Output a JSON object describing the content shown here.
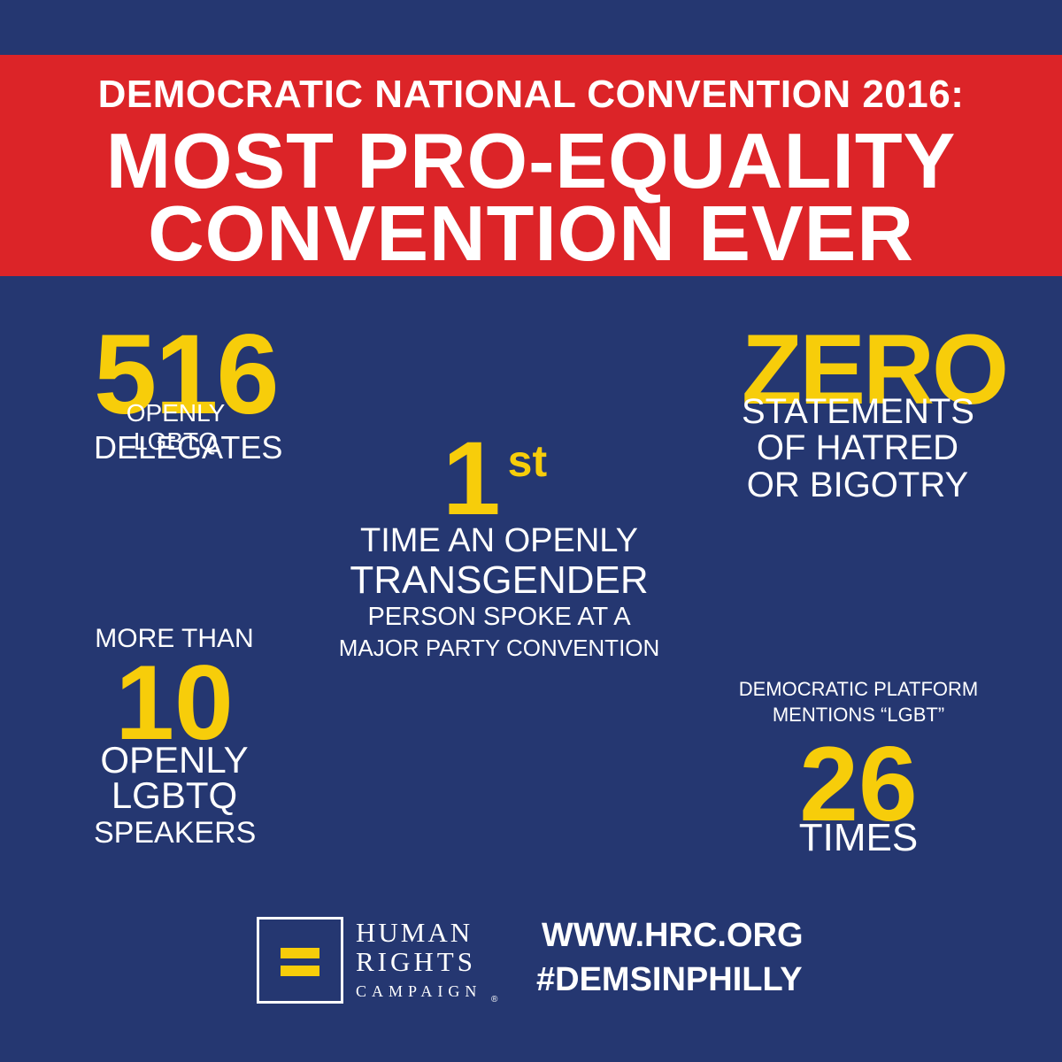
{
  "header": {
    "line1": "DEMOCRATIC NATIONAL CONVENTION 2016:",
    "line2": "MOST PRO-EQUALITY",
    "line3": "CONVENTION EVER"
  },
  "stats": {
    "delegates": {
      "number": "516",
      "label1": "OPENLY LGBTQ",
      "label2": "DELEGATES"
    },
    "zero": {
      "number": "ZERO",
      "label1": "STATEMENTS",
      "label2": "OF HATRED",
      "label3": "OR BIGOTRY"
    },
    "first": {
      "number": "1",
      "suffix": "st",
      "label1": "TIME AN OPENLY",
      "label2": "TRANSGENDER",
      "label3": "PERSON SPOKE AT A",
      "label4": "MAJOR PARTY CONVENTION"
    },
    "speakers": {
      "prefix": "MORE THAN",
      "number": "10",
      "label1": "OPENLY",
      "label2": "LGBTQ",
      "label3": "SPEAKERS"
    },
    "platform": {
      "label1": "DEMOCRATIC PLATFORM",
      "label2": "MENTIONS “LGBT”",
      "number": "26",
      "label3": "TIMES"
    }
  },
  "footer": {
    "logo_line1": "HUMAN",
    "logo_line2": "RIGHTS",
    "logo_line3": "CAMPAIGN",
    "registered": "®",
    "url": "WWW.HRC.ORG",
    "hashtag": "#DEMSINPHILLY"
  },
  "colors": {
    "background": "#253771",
    "banner": "#dc2428",
    "accent": "#f7cd0a",
    "text": "#ffffff"
  }
}
